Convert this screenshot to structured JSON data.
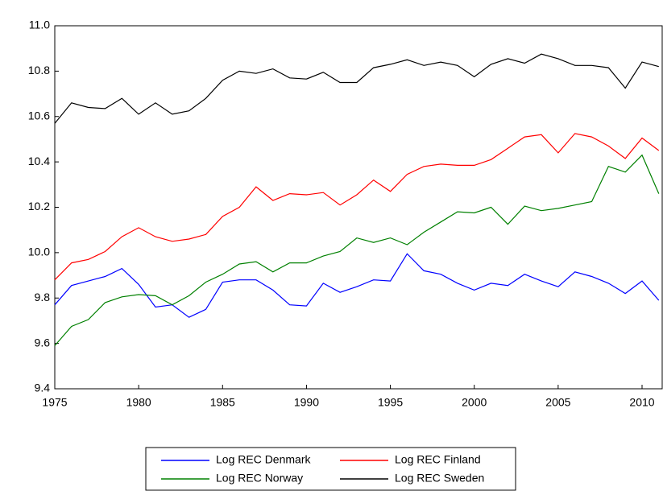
{
  "chart_data": {
    "type": "line",
    "x": [
      1975,
      1976,
      1977,
      1978,
      1979,
      1980,
      1981,
      1982,
      1983,
      1984,
      1985,
      1986,
      1987,
      1988,
      1989,
      1990,
      1991,
      1992,
      1993,
      1994,
      1995,
      1996,
      1997,
      1998,
      1999,
      2000,
      2001,
      2002,
      2003,
      2004,
      2005,
      2006,
      2007,
      2008,
      2009,
      2010,
      2011
    ],
    "series": [
      {
        "name": "Log REC Denmark",
        "color": "#0000ff",
        "values": [
          9.77,
          9.855,
          9.875,
          9.895,
          9.93,
          9.86,
          9.76,
          9.77,
          9.715,
          9.75,
          9.87,
          9.88,
          9.88,
          9.835,
          9.77,
          9.765,
          9.865,
          9.825,
          9.85,
          9.88,
          9.875,
          9.995,
          9.92,
          9.905,
          9.865,
          9.835,
          9.865,
          9.855,
          9.905,
          9.875,
          9.85,
          9.915,
          9.895,
          9.865,
          9.82,
          9.875,
          9.79
        ]
      },
      {
        "name": "Log REC Finland",
        "color": "#ff0000",
        "values": [
          9.88,
          9.955,
          9.97,
          10.005,
          10.07,
          10.11,
          10.07,
          10.05,
          10.06,
          10.08,
          10.16,
          10.2,
          10.29,
          10.23,
          10.26,
          10.255,
          10.265,
          10.21,
          10.255,
          10.32,
          10.27,
          10.345,
          10.38,
          10.39,
          10.385,
          10.385,
          10.41,
          10.46,
          10.51,
          10.52,
          10.44,
          10.525,
          10.51,
          10.47,
          10.415,
          10.505,
          10.45
        ]
      },
      {
        "name": "Log REC Norway",
        "color": "#008000",
        "values": [
          9.59,
          9.675,
          9.705,
          9.78,
          9.805,
          9.815,
          9.81,
          9.77,
          9.81,
          9.87,
          9.905,
          9.95,
          9.96,
          9.915,
          9.955,
          9.955,
          9.985,
          10.005,
          10.065,
          10.045,
          10.065,
          10.035,
          10.09,
          10.135,
          10.18,
          10.175,
          10.2,
          10.125,
          10.205,
          10.185,
          10.195,
          10.21,
          10.225,
          10.38,
          10.355,
          10.43,
          10.26
        ]
      },
      {
        "name": "Log REC Sweden",
        "color": "#000000",
        "values": [
          10.57,
          10.66,
          10.64,
          10.635,
          10.68,
          10.61,
          10.66,
          10.61,
          10.625,
          10.68,
          10.76,
          10.8,
          10.79,
          10.81,
          10.77,
          10.765,
          10.795,
          10.75,
          10.75,
          10.815,
          10.83,
          10.85,
          10.825,
          10.84,
          10.825,
          10.775,
          10.83,
          10.855,
          10.835,
          10.875,
          10.855,
          10.825,
          10.825,
          10.815,
          10.725,
          10.84,
          10.82
        ]
      }
    ],
    "xlim": [
      1975,
      2011.2
    ],
    "xticks": [
      1975,
      1980,
      1985,
      1990,
      1995,
      2000,
      2005,
      2010
    ],
    "ylim": [
      9.4,
      11.0
    ],
    "yticks": [
      {
        "value": 9.4,
        "label": "9.4"
      },
      {
        "value": 9.6,
        "label": "9.6"
      },
      {
        "value": 9.8,
        "label": "9.8"
      },
      {
        "value": 10.0,
        "label": "10.0"
      },
      {
        "value": 10.2,
        "label": "10.2"
      },
      {
        "value": 10.4,
        "label": "10.4"
      },
      {
        "value": 10.6,
        "label": "10.6"
      },
      {
        "value": 10.8,
        "label": "10.8"
      },
      {
        "value": 11.0,
        "label": "11.0"
      }
    ],
    "legend": "bottom"
  }
}
